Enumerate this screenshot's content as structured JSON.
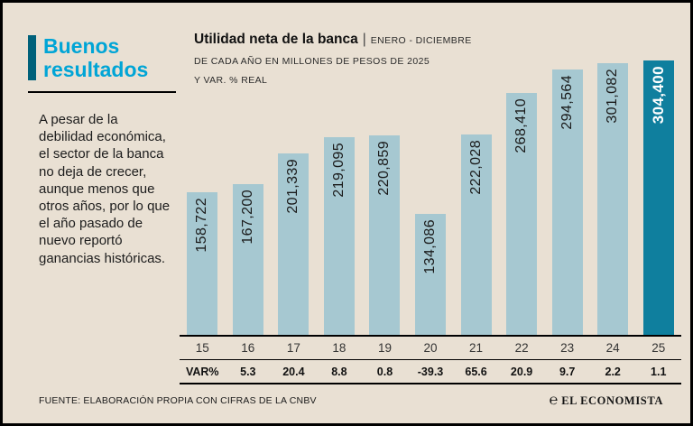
{
  "panel": {
    "headline": "Buenos resultados",
    "description": "A pesar de la debilidad económica, el sector de la banca no deja de crecer, aunque menos que otros años, por lo que el año pasado de nuevo reportó ganancias históricas."
  },
  "header": {
    "title": "Utilidad neta de la banca",
    "separator": "|",
    "subtitle_line1": "ENERO - DICIEMBRE",
    "subtitle_line2": "DE CADA AÑO EN MILLONES DE PESOS DE 2025",
    "subtitle_line3": "Y VAR. % REAL"
  },
  "chart_data": {
    "type": "bar",
    "title": "Utilidad neta de la banca",
    "subtitle": "ENERO - DICIEMBRE DE CADA AÑO EN MILLONES DE PESOS DE 2025 Y VAR. % REAL",
    "categories": [
      "15",
      "16",
      "17",
      "18",
      "19",
      "20",
      "21",
      "22",
      "23",
      "24",
      "25"
    ],
    "values": [
      158722,
      167200,
      201339,
      219095,
      220859,
      134086,
      222028,
      268410,
      294564,
      301082,
      304400
    ],
    "value_labels": [
      "158,722",
      "167,200",
      "201,339",
      "219,095",
      "220,859",
      "134,086",
      "222,028",
      "268,410",
      "294,564",
      "301,082",
      "304,400"
    ],
    "var_label": "VAR%",
    "var_values": [
      "5.3",
      "20.4",
      "8.8",
      "0.8",
      "-39.3",
      "65.6",
      "20.9",
      "9.7",
      "2.2",
      "1.1"
    ],
    "highlight_index": 10,
    "ylim": [
      0,
      304400
    ],
    "grid": false,
    "legend": "none",
    "bar_color": "#a6c8d1",
    "highlight_color": "#0f7f9e"
  },
  "footer": {
    "source": "FUENTE: ELABORACIÓN PROPIA CON CIFRAS DE LA CNBV",
    "logo_mark": "℮",
    "logo_text": "EL ECONOMISTA"
  },
  "colors": {
    "background": "#e9e0d3",
    "headline": "#00a5d6",
    "accent_bar": "#00617a",
    "bar": "#a6c8d1",
    "bar_highlight": "#0f7f9e"
  }
}
